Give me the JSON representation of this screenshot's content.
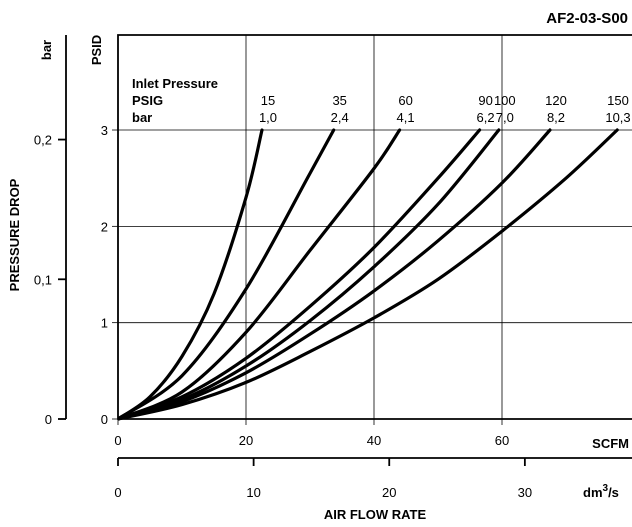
{
  "chart_data": {
    "type": "line",
    "title": "AF2-03-S00",
    "xlabel": "AIR FLOW RATE",
    "ylabel": "PRESSURE DROP",
    "x_unit_primary": "SCFM",
    "x_unit_secondary": "dm³/s",
    "y_unit_primary": "PSID",
    "y_unit_secondary": "bar",
    "xlim": [
      0,
      70
    ],
    "ylim": [
      0,
      3
    ],
    "xticks": [
      {
        "value": 0,
        "label": "0"
      },
      {
        "value": 20,
        "label": "20"
      },
      {
        "value": 40,
        "label": "40"
      },
      {
        "value": 60,
        "label": "60"
      }
    ],
    "yticks": [
      {
        "value": 0,
        "label": "0"
      },
      {
        "value": 1,
        "label": "1"
      },
      {
        "value": 2,
        "label": "2"
      },
      {
        "value": 3,
        "label": "3"
      }
    ],
    "x2ticks": [
      {
        "value": 0,
        "label": "0"
      },
      {
        "value": 10,
        "label": "10"
      },
      {
        "value": 20,
        "label": "20"
      },
      {
        "value": 30,
        "label": "30"
      }
    ],
    "y2ticks": [
      {
        "value": 0,
        "label": "0"
      },
      {
        "value": 0.1,
        "label": "0,1"
      },
      {
        "value": 0.2,
        "label": "0,2"
      }
    ],
    "grid": true,
    "legend": {
      "title": "Inlet Pressure",
      "row1_label": "PSIG",
      "row2_label": "bar"
    },
    "series": [
      {
        "psig": "15",
        "bar": "1,0",
        "x": [
          0,
          5,
          10,
          15,
          20,
          22.5
        ],
        "y": [
          0,
          0.23,
          0.65,
          1.3,
          2.3,
          3.0
        ]
      },
      {
        "psig": "35",
        "bar": "2,4",
        "x": [
          0,
          10,
          20,
          30,
          33.7
        ],
        "y": [
          0,
          0.45,
          1.35,
          2.55,
          3.0
        ]
      },
      {
        "psig": "60",
        "bar": "4,1",
        "x": [
          0,
          10,
          20,
          30,
          40,
          44
        ],
        "y": [
          0,
          0.28,
          0.9,
          1.75,
          2.6,
          3.0
        ]
      },
      {
        "psig": "90",
        "bar": "6,2",
        "x": [
          0,
          10,
          20,
          30,
          40,
          50,
          56.5
        ],
        "y": [
          0,
          0.23,
          0.63,
          1.17,
          1.78,
          2.5,
          3.0
        ]
      },
      {
        "psig": "100",
        "bar": "7,0",
        "x": [
          0,
          10,
          20,
          30,
          40,
          50,
          59.5
        ],
        "y": [
          0,
          0.2,
          0.55,
          1.02,
          1.58,
          2.23,
          3.0
        ]
      },
      {
        "psig": "120",
        "bar": "8,2",
        "x": [
          0,
          10,
          20,
          30,
          40,
          50,
          60,
          67.5
        ],
        "y": [
          0,
          0.18,
          0.48,
          0.88,
          1.33,
          1.85,
          2.45,
          3.0
        ]
      },
      {
        "psig": "150",
        "bar": "10,3",
        "x": [
          0,
          10,
          20,
          30,
          40,
          50,
          60,
          70,
          78
        ],
        "y": [
          0,
          0.15,
          0.38,
          0.7,
          1.05,
          1.45,
          1.95,
          2.5,
          3.0
        ]
      }
    ]
  }
}
